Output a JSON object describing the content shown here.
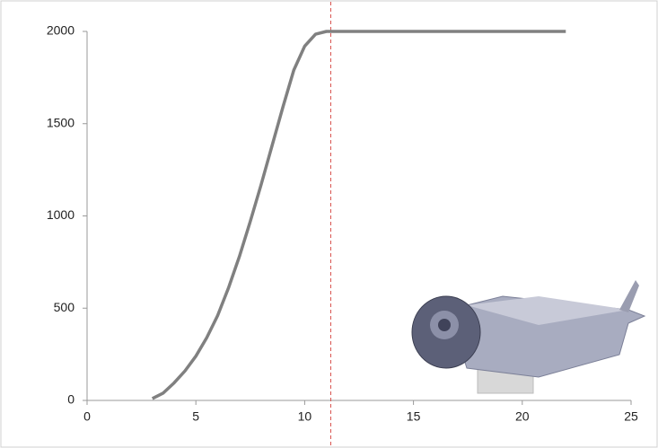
{
  "chart_data": {
    "type": "line",
    "x": [
      3,
      3.5,
      4,
      4.5,
      5,
      5.5,
      6,
      6.5,
      7,
      7.5,
      8,
      8.5,
      9,
      9.5,
      10,
      10.5,
      11,
      22
    ],
    "series": [
      {
        "color": "#808080",
        "values": [
          10,
          40,
          95,
          160,
          240,
          340,
          460,
          610,
          780,
          970,
          1170,
          1380,
          1590,
          1790,
          1920,
          1985,
          2000,
          2000
        ]
      }
    ],
    "xlim": [
      0,
      25
    ],
    "xticks": [
      0,
      5,
      10,
      15,
      20,
      25
    ],
    "ylim": [
      0,
      2000
    ],
    "yticks": [
      0,
      500,
      1000,
      1500,
      2000
    ],
    "vline": {
      "x": 11.2,
      "color": "#d9534f"
    }
  }
}
